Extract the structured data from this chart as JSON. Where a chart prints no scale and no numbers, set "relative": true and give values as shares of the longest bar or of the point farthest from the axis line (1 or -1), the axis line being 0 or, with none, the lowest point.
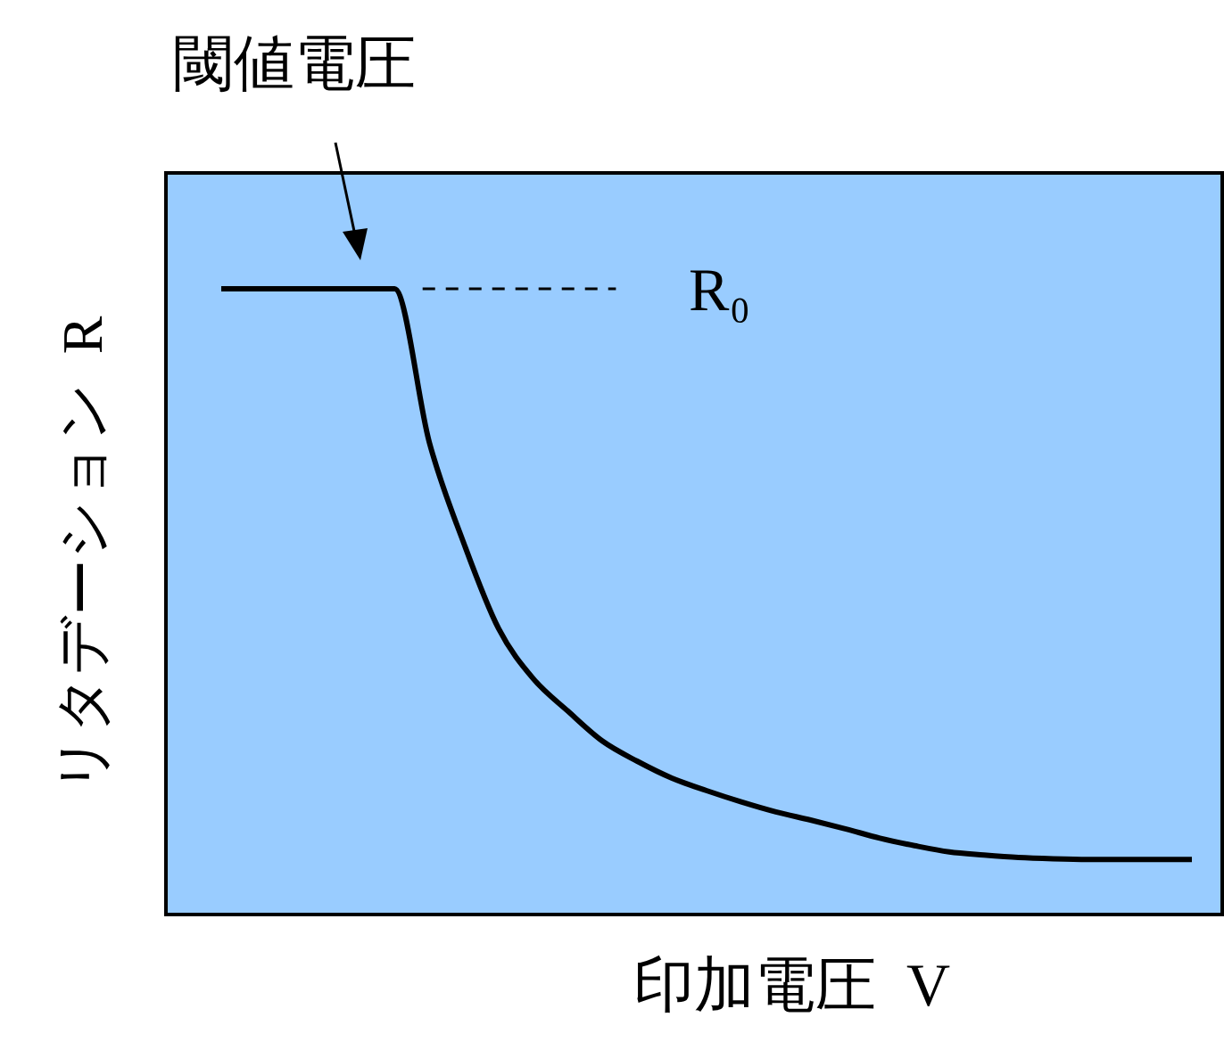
{
  "chart_data": {
    "type": "line",
    "relative": true,
    "xlabel": "印加電圧  V",
    "ylabel": "リタデーション  R",
    "annotations": [
      "閾値電圧"
    ],
    "categories": [
      null,
      null,
      null,
      null,
      null,
      null,
      null,
      null,
      null,
      null,
      null,
      null,
      null,
      null,
      null,
      null,
      null,
      null,
      null,
      null,
      null,
      null,
      null,
      null,
      null,
      null,
      null,
      null,
      null
    ],
    "series": [
      {
        "color": "#000000",
        "values": [
          1,
          1,
          1,
          1,
          1,
          1,
          0.755,
          0.593,
          0.457,
          0.377,
          0.325,
          0.277,
          0.245,
          0.218,
          0.198,
          0.18,
          0.164,
          0.151,
          0.137,
          0.122,
          0.11,
          0.1,
          0.095,
          0.091,
          0.089,
          0.088,
          0.088,
          0.088,
          0.088
        ]
      }
    ],
    "ref_lines": [
      {
        "axis": "y",
        "value": 1,
        "label": "R₀",
        "line_style": "dashed",
        "color": "#000000"
      }
    ],
    "line_style": "solid"
  }
}
